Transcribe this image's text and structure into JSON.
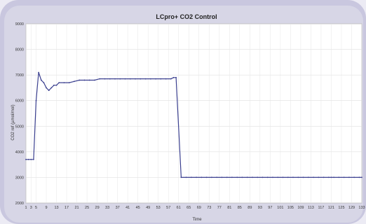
{
  "chart_data": {
    "type": "line",
    "title": "LCpro+ CO2 Control",
    "xlabel": "Time",
    "ylabel": "CO2 ref (µmol/mol)",
    "ylim": [
      2000,
      9000
    ],
    "xlim": [
      1,
      133
    ],
    "grid": true,
    "legend": "none",
    "y_ticks": [
      "2000",
      "3000",
      "4000",
      "5000",
      "6000",
      "7000",
      "8000",
      "9000"
    ],
    "x_ticks": [
      "1",
      "3",
      "5",
      "9",
      "13",
      "17",
      "21",
      "25",
      "29",
      "33",
      "37",
      "41",
      "45",
      "49",
      "53",
      "57",
      "61",
      "65",
      "69",
      "73",
      "77",
      "81",
      "85",
      "89",
      "93",
      "97",
      "101",
      "105",
      "109",
      "113",
      "117",
      "121",
      "125",
      "129",
      "133"
    ],
    "series": [
      {
        "color": "#3a3f8f",
        "x": [
          1,
          2,
          3,
          4,
          5,
          6,
          7,
          8,
          9,
          10,
          11,
          12,
          13,
          14,
          16,
          18,
          20,
          22,
          24,
          26,
          28,
          30,
          32,
          34,
          36,
          38,
          40,
          42,
          44,
          46,
          48,
          50,
          52,
          54,
          56,
          58,
          59,
          60,
          62,
          64,
          66,
          68,
          70,
          72,
          74,
          76,
          78,
          80,
          82,
          84,
          86,
          88,
          90,
          92,
          94,
          96,
          98,
          100,
          102,
          104,
          106,
          108,
          110,
          112,
          114,
          116,
          118,
          120,
          121,
          122,
          124,
          126,
          128,
          130,
          132,
          133
        ],
        "y": [
          3700,
          3700,
          3700,
          3700,
          6000,
          7100,
          6800,
          6700,
          6500,
          6400,
          6500,
          6600,
          6600,
          6700,
          6700,
          6700,
          6750,
          6800,
          6800,
          6800,
          6800,
          6850,
          6850,
          6850,
          6850,
          6850,
          6850,
          6850,
          6850,
          6850,
          6850,
          6850,
          6850,
          6850,
          6850,
          6850,
          6900,
          6900,
          3000,
          3000,
          3000,
          3000,
          3000,
          3000,
          3000,
          3000,
          3000,
          3000,
          3000,
          3000,
          3000,
          3000,
          3000,
          3000,
          3000,
          3000,
          3000,
          3000,
          3000,
          3000,
          3000,
          3000,
          3000,
          3000,
          3000,
          3000,
          3000,
          3000,
          3000,
          3000,
          3000,
          3000,
          3000,
          3000,
          3000,
          3000
        ]
      }
    ]
  }
}
